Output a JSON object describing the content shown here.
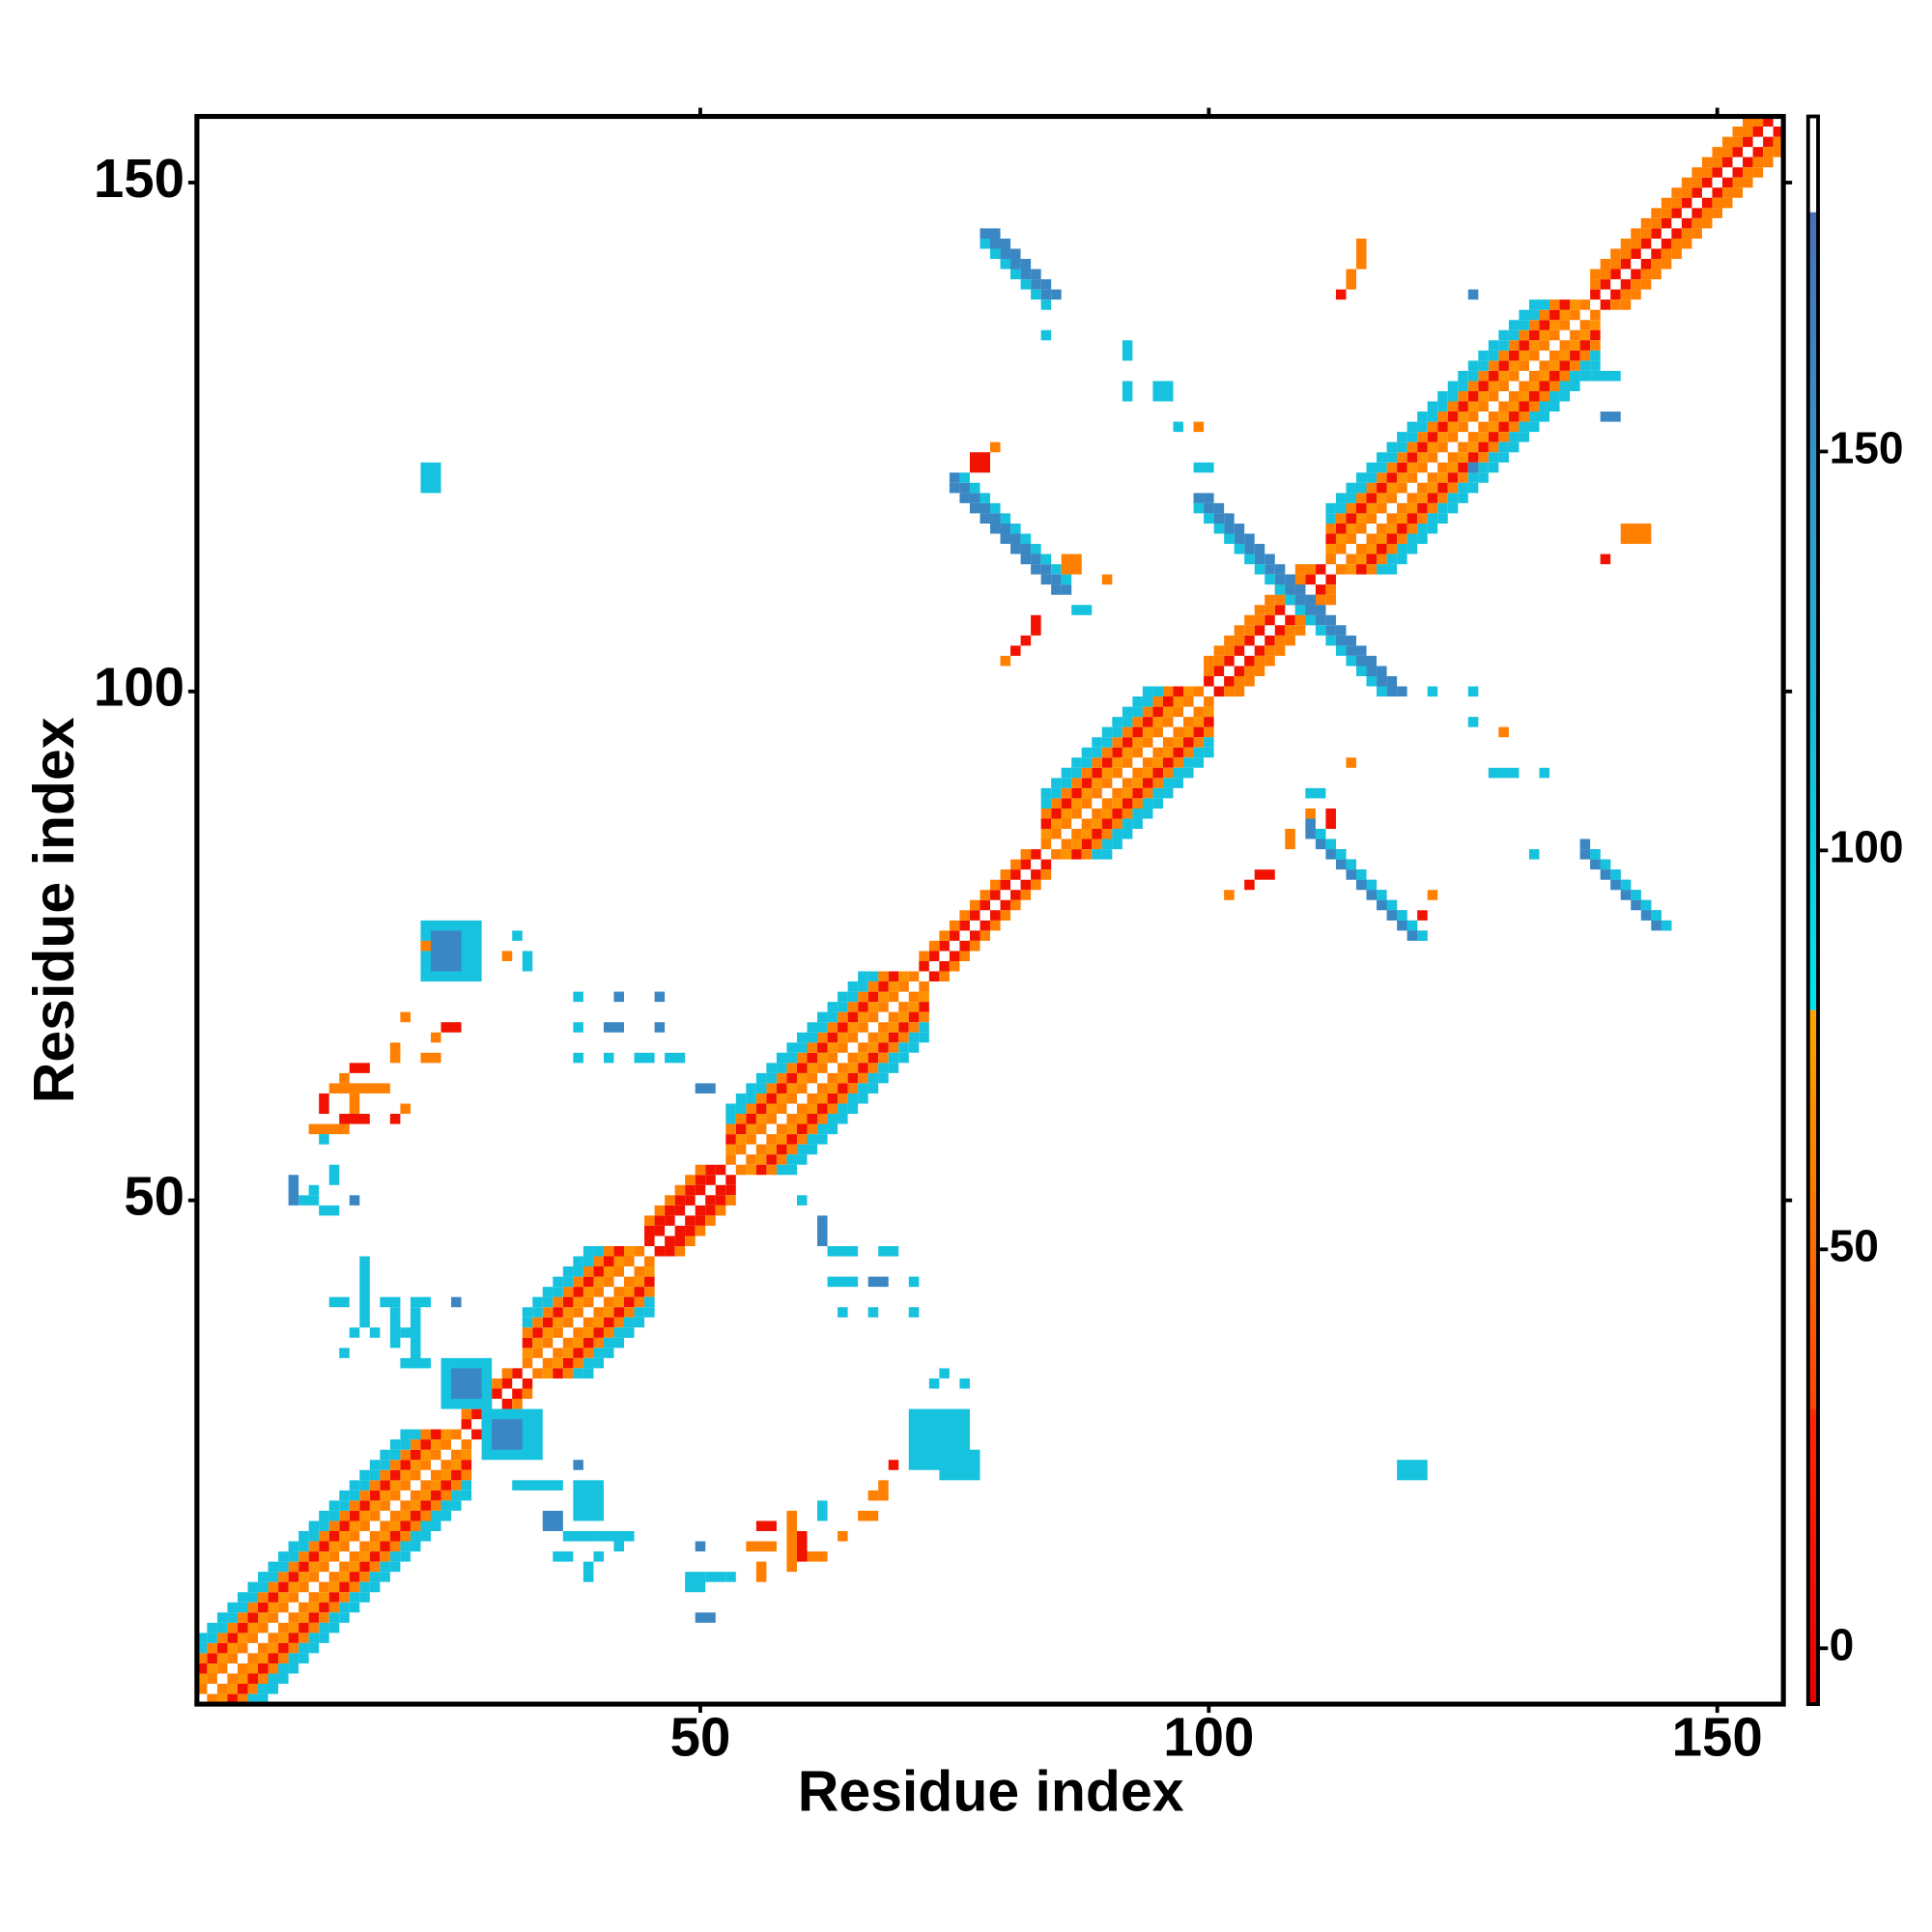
{
  "chart_data": {
    "type": "heatmap",
    "xlabel": "Residue index",
    "ylabel": "Residue index",
    "xlim": [
      0.5,
      156.5
    ],
    "ylim": [
      0.5,
      156.5
    ],
    "xticks": [
      50,
      100,
      150
    ],
    "yticks": [
      50,
      100,
      150
    ],
    "colorbar": {
      "lim": [
        -7,
        192
      ],
      "ticks": [
        0,
        50,
        100,
        150
      ],
      "segments": [
        {
          "range": [
            -7,
            30
          ],
          "colors": [
            "#e60000",
            "#ff2a00"
          ]
        },
        {
          "range": [
            30,
            80
          ],
          "colors": [
            "#ff4500",
            "#ffa500"
          ]
        },
        {
          "range": [
            80,
            180
          ],
          "colors": [
            "#00e5ee",
            "#4a70b8"
          ]
        },
        {
          "range": [
            180,
            192
          ],
          "colors": [
            "#ffffff",
            "#ffffff"
          ]
        }
      ]
    },
    "strips": [
      [
        1,
        26,
        2,
        1,
        60
      ],
      [
        2,
        27,
        1,
        1,
        60
      ],
      [
        1,
        25,
        3,
        1,
        70
      ],
      [
        3,
        27,
        1,
        1,
        70
      ],
      [
        1,
        24,
        4,
        1,
        10
      ],
      [
        4,
        27,
        1,
        1,
        10
      ],
      [
        1,
        23,
        5,
        1,
        60
      ],
      [
        5,
        27,
        1,
        1,
        60
      ],
      [
        1,
        22,
        6,
        1,
        110
      ],
      [
        6,
        27,
        1,
        1,
        110
      ],
      [
        1,
        21,
        7,
        1,
        110
      ],
      [
        7,
        27,
        1,
        1,
        110
      ],
      [
        27,
        32,
        28,
        1,
        10
      ],
      [
        28,
        33,
        27,
        1,
        10
      ],
      [
        27,
        31,
        29,
        1,
        60
      ],
      [
        29,
        33,
        27,
        1,
        60
      ],
      [
        33,
        44,
        34,
        1,
        60
      ],
      [
        34,
        45,
        33,
        1,
        60
      ],
      [
        33,
        43,
        35,
        1,
        70
      ],
      [
        35,
        45,
        33,
        1,
        70
      ],
      [
        33,
        42,
        36,
        1,
        10
      ],
      [
        36,
        45,
        33,
        1,
        10
      ],
      [
        33,
        41,
        37,
        1,
        60
      ],
      [
        37,
        45,
        33,
        1,
        60
      ],
      [
        33,
        40,
        38,
        1,
        110
      ],
      [
        38,
        45,
        33,
        1,
        110
      ],
      [
        33,
        39,
        39,
        1,
        110
      ],
      [
        39,
        45,
        33,
        1,
        110
      ],
      [
        45,
        52,
        46,
        1,
        10
      ],
      [
        46,
        53,
        45,
        1,
        10
      ],
      [
        45,
        51,
        47,
        1,
        10
      ],
      [
        47,
        53,
        45,
        1,
        10
      ],
      [
        45,
        50,
        48,
        1,
        60
      ],
      [
        48,
        53,
        45,
        1,
        60
      ],
      [
        53,
        71,
        54,
        1,
        60
      ],
      [
        54,
        72,
        53,
        1,
        60
      ],
      [
        53,
        70,
        55,
        1,
        70
      ],
      [
        55,
        72,
        53,
        1,
        70
      ],
      [
        53,
        69,
        56,
        1,
        10
      ],
      [
        56,
        72,
        53,
        1,
        10
      ],
      [
        53,
        68,
        57,
        1,
        60
      ],
      [
        57,
        72,
        53,
        1,
        60
      ],
      [
        53,
        67,
        58,
        1,
        110
      ],
      [
        58,
        72,
        53,
        1,
        110
      ],
      [
        53,
        66,
        59,
        1,
        110
      ],
      [
        59,
        72,
        53,
        1,
        110
      ],
      [
        72,
        83,
        73,
        1,
        10
      ],
      [
        73,
        84,
        72,
        1,
        10
      ],
      [
        72,
        82,
        74,
        1,
        60
      ],
      [
        74,
        84,
        72,
        1,
        60
      ],
      [
        84,
        99,
        85,
        1,
        60
      ],
      [
        85,
        100,
        84,
        1,
        60
      ],
      [
        84,
        98,
        86,
        1,
        70
      ],
      [
        86,
        100,
        84,
        1,
        70
      ],
      [
        84,
        97,
        87,
        1,
        10
      ],
      [
        87,
        100,
        84,
        1,
        10
      ],
      [
        84,
        96,
        88,
        1,
        60
      ],
      [
        88,
        100,
        84,
        1,
        60
      ],
      [
        84,
        95,
        89,
        1,
        110
      ],
      [
        89,
        100,
        84,
        1,
        110
      ],
      [
        84,
        94,
        90,
        1,
        110
      ],
      [
        90,
        100,
        84,
        1,
        110
      ],
      [
        100,
        111,
        101,
        1,
        10
      ],
      [
        101,
        112,
        100,
        1,
        10
      ],
      [
        100,
        110,
        102,
        1,
        60
      ],
      [
        102,
        112,
        100,
        1,
        60
      ],
      [
        100,
        109,
        103,
        1,
        60
      ],
      [
        103,
        112,
        100,
        1,
        60
      ],
      [
        112,
        137,
        113,
        1,
        60
      ],
      [
        113,
        138,
        112,
        1,
        60
      ],
      [
        112,
        136,
        114,
        1,
        70
      ],
      [
        114,
        138,
        112,
        1,
        70
      ],
      [
        112,
        135,
        115,
        1,
        10
      ],
      [
        115,
        138,
        112,
        1,
        10
      ],
      [
        112,
        134,
        116,
        1,
        60
      ],
      [
        116,
        138,
        112,
        1,
        60
      ],
      [
        112,
        133,
        117,
        1,
        110
      ],
      [
        117,
        138,
        112,
        1,
        110
      ],
      [
        112,
        132,
        118,
        1,
        110
      ],
      [
        118,
        138,
        112,
        1,
        110
      ],
      [
        138,
        155,
        139,
        1,
        10
      ],
      [
        139,
        156,
        138,
        1,
        10
      ],
      [
        138,
        154,
        140,
        1,
        60
      ],
      [
        140,
        156,
        138,
        1,
        60
      ],
      [
        138,
        153,
        141,
        1,
        60
      ],
      [
        141,
        156,
        138,
        1,
        60
      ],
      [
        78,
        84,
        145,
        -1,
        160
      ],
      [
        79,
        85,
        145,
        -1,
        160
      ],
      [
        78,
        84,
        144,
        -1,
        110
      ],
      [
        75,
        86,
        121,
        -1,
        160
      ],
      [
        76,
        86,
        121,
        -1,
        110
      ],
      [
        75,
        85,
        120,
        -1,
        160
      ],
      [
        99,
        118,
        119,
        -1,
        160
      ],
      [
        100,
        119,
        119,
        -1,
        160
      ],
      [
        99,
        117,
        118,
        -1,
        110
      ],
      [
        110,
        121,
        87,
        -1,
        160
      ],
      [
        110,
        120,
        86,
        -1,
        160
      ],
      [
        111,
        121,
        86,
        -1,
        110
      ],
      [
        137,
        145,
        85,
        -1,
        160
      ],
      [
        137,
        144,
        84,
        -1,
        160
      ],
      [
        138,
        145,
        84,
        -1,
        110
      ]
    ],
    "blocks": [
      [
        115,
        115,
        142,
        144,
        60
      ],
      [
        114,
        114,
        140,
        141,
        60
      ],
      [
        113,
        113,
        139,
        139,
        10
      ],
      [
        141,
        143,
        115,
        116,
        60
      ],
      [
        139,
        139,
        113,
        113,
        10
      ],
      [
        84,
        84,
        135,
        135,
        110
      ],
      [
        92,
        92,
        133,
        134,
        110
      ],
      [
        92,
        92,
        129,
        130,
        110
      ],
      [
        95,
        96,
        129,
        130,
        110
      ],
      [
        97,
        97,
        126,
        126,
        110
      ],
      [
        99,
        99,
        126,
        126,
        60
      ],
      [
        99,
        100,
        122,
        122,
        110
      ],
      [
        90,
        90,
        111,
        111,
        60
      ],
      [
        87,
        88,
        108,
        108,
        110
      ],
      [
        86,
        87,
        112,
        113,
        60
      ],
      [
        126,
        126,
        139,
        139,
        160
      ],
      [
        138,
        140,
        131,
        131,
        110
      ],
      [
        139,
        140,
        127,
        127,
        160
      ],
      [
        126,
        126,
        122,
        122,
        160
      ],
      [
        122,
        122,
        100,
        100,
        110
      ],
      [
        126,
        126,
        100,
        100,
        110
      ],
      [
        126,
        126,
        97,
        97,
        110
      ],
      [
        129,
        129,
        96,
        96,
        60
      ],
      [
        128,
        130,
        92,
        92,
        110
      ],
      [
        133,
        133,
        92,
        92,
        110
      ],
      [
        132,
        132,
        84,
        84,
        110
      ],
      [
        114,
        114,
        93,
        93,
        60
      ],
      [
        122,
        122,
        80,
        80,
        60
      ],
      [
        121,
        121,
        78,
        78,
        10
      ],
      [
        102,
        102,
        80,
        80,
        60
      ],
      [
        104,
        104,
        81,
        81,
        10
      ],
      [
        105,
        106,
        82,
        82,
        10
      ],
      [
        80,
        80,
        103,
        103,
        60
      ],
      [
        81,
        81,
        104,
        104,
        10
      ],
      [
        82,
        82,
        105,
        105,
        10
      ],
      [
        83,
        83,
        106,
        107,
        10
      ],
      [
        77,
        78,
        122,
        123,
        10
      ],
      [
        79,
        79,
        124,
        124,
        60
      ],
      [
        110,
        110,
        88,
        88,
        60
      ],
      [
        112,
        112,
        87,
        88,
        10
      ],
      [
        110,
        111,
        90,
        90,
        110
      ],
      [
        108,
        108,
        85,
        86,
        60
      ],
      [
        119,
        121,
        23,
        24,
        110
      ],
      [
        71,
        76,
        24,
        29,
        110
      ],
      [
        74,
        77,
        23,
        25,
        110
      ],
      [
        73,
        73,
        32,
        32,
        110
      ],
      [
        76,
        76,
        32,
        32,
        110
      ],
      [
        74,
        74,
        33,
        33,
        110
      ],
      [
        56,
        56,
        13,
        14,
        60
      ],
      [
        55,
        57,
        16,
        16,
        60
      ],
      [
        56,
        57,
        18,
        18,
        10
      ],
      [
        59,
        59,
        14,
        19,
        60
      ],
      [
        60,
        60,
        15,
        17,
        10
      ],
      [
        61,
        62,
        15,
        15,
        60
      ],
      [
        62,
        62,
        19,
        20,
        110
      ],
      [
        64,
        64,
        17,
        17,
        60
      ],
      [
        66,
        67,
        19,
        19,
        60
      ],
      [
        68,
        68,
        21,
        22,
        60
      ],
      [
        69,
        69,
        24,
        24,
        10
      ],
      [
        67,
        67,
        21,
        21,
        60
      ],
      [
        50,
        51,
        9,
        9,
        160
      ],
      [
        49,
        50,
        12,
        13,
        110
      ],
      [
        51,
        52,
        13,
        13,
        110
      ],
      [
        50,
        50,
        16,
        16,
        160
      ],
      [
        53,
        53,
        13,
        13,
        110
      ],
      [
        32,
        36,
        22,
        22,
        110
      ],
      [
        38,
        40,
        19,
        22,
        110
      ],
      [
        35,
        36,
        18,
        19,
        160
      ],
      [
        37,
        39,
        17,
        17,
        110
      ],
      [
        40,
        43,
        17,
        17,
        110
      ],
      [
        36,
        37,
        15,
        15,
        110
      ],
      [
        40,
        40,
        15,
        15,
        110
      ],
      [
        39,
        39,
        13,
        14,
        110
      ],
      [
        38,
        38,
        24,
        24,
        160
      ],
      [
        42,
        42,
        16,
        16,
        110
      ],
      [
        60,
        60,
        50,
        50,
        110
      ],
      [
        62,
        62,
        46,
        48,
        160
      ],
      [
        63,
        65,
        45,
        45,
        110
      ],
      [
        68,
        69,
        45,
        45,
        110
      ],
      [
        63,
        65,
        42,
        42,
        110
      ],
      [
        67,
        68,
        42,
        42,
        160
      ],
      [
        71,
        71,
        42,
        42,
        110
      ],
      [
        64,
        64,
        39,
        39,
        110
      ],
      [
        67,
        67,
        39,
        39,
        110
      ],
      [
        71,
        71,
        39,
        39,
        110
      ],
      [
        25,
        29,
        30,
        34,
        110
      ],
      [
        26,
        28,
        31,
        33,
        160
      ],
      [
        29,
        34,
        25,
        29,
        110
      ],
      [
        30,
        32,
        26,
        28,
        160
      ],
      [
        23,
        28,
        72,
        77,
        110
      ],
      [
        24,
        26,
        73,
        76,
        160
      ],
      [
        23,
        23,
        75,
        75,
        60
      ],
      [
        31,
        31,
        74,
        74,
        60
      ],
      [
        33,
        33,
        73,
        74,
        110
      ],
      [
        32,
        32,
        76,
        76,
        110
      ],
      [
        38,
        38,
        70,
        70,
        110
      ],
      [
        42,
        42,
        70,
        70,
        160
      ],
      [
        46,
        46,
        70,
        70,
        160
      ],
      [
        38,
        38,
        67,
        67,
        110
      ],
      [
        41,
        42,
        67,
        67,
        160
      ],
      [
        46,
        46,
        67,
        67,
        160
      ],
      [
        38,
        38,
        64,
        64,
        110
      ],
      [
        41,
        41,
        64,
        64,
        110
      ],
      [
        44,
        45,
        64,
        64,
        110
      ],
      [
        47,
        48,
        64,
        64,
        110
      ],
      [
        50,
        51,
        61,
        61,
        160
      ],
      [
        21,
        21,
        68,
        68,
        60
      ],
      [
        25,
        26,
        67,
        67,
        10
      ],
      [
        24,
        24,
        66,
        66,
        60
      ],
      [
        20,
        20,
        64,
        65,
        60
      ],
      [
        23,
        24,
        64,
        64,
        60
      ],
      [
        16,
        17,
        63,
        63,
        10
      ],
      [
        15,
        15,
        62,
        62,
        60
      ],
      [
        14,
        19,
        61,
        61,
        60
      ],
      [
        13,
        13,
        59,
        60,
        10
      ],
      [
        16,
        16,
        59,
        60,
        60
      ],
      [
        15,
        17,
        58,
        58,
        10
      ],
      [
        20,
        20,
        58,
        58,
        10
      ],
      [
        21,
        21,
        59,
        59,
        60
      ],
      [
        12,
        15,
        57,
        57,
        60
      ],
      [
        13,
        13,
        56,
        56,
        110
      ],
      [
        10,
        10,
        50,
        52,
        160
      ],
      [
        11,
        12,
        50,
        50,
        110
      ],
      [
        12,
        12,
        51,
        51,
        110
      ],
      [
        13,
        14,
        49,
        49,
        110
      ],
      [
        16,
        16,
        50,
        50,
        160
      ],
      [
        14,
        14,
        52,
        53,
        110
      ],
      [
        14,
        15,
        40,
        40,
        110
      ],
      [
        17,
        17,
        38,
        44,
        110
      ],
      [
        19,
        20,
        40,
        40,
        110
      ],
      [
        20,
        20,
        36,
        39,
        110
      ],
      [
        21,
        22,
        37,
        37,
        110
      ],
      [
        22,
        23,
        40,
        40,
        110
      ],
      [
        22,
        22,
        34,
        39,
        110
      ],
      [
        23,
        23,
        34,
        34,
        110
      ],
      [
        18,
        18,
        37,
        37,
        110
      ],
      [
        26,
        26,
        40,
        40,
        160
      ],
      [
        16,
        16,
        37,
        37,
        110
      ],
      [
        15,
        15,
        35,
        35,
        110
      ],
      [
        21,
        22,
        34,
        34,
        110
      ],
      [
        23,
        24,
        120,
        122,
        110
      ]
    ]
  }
}
